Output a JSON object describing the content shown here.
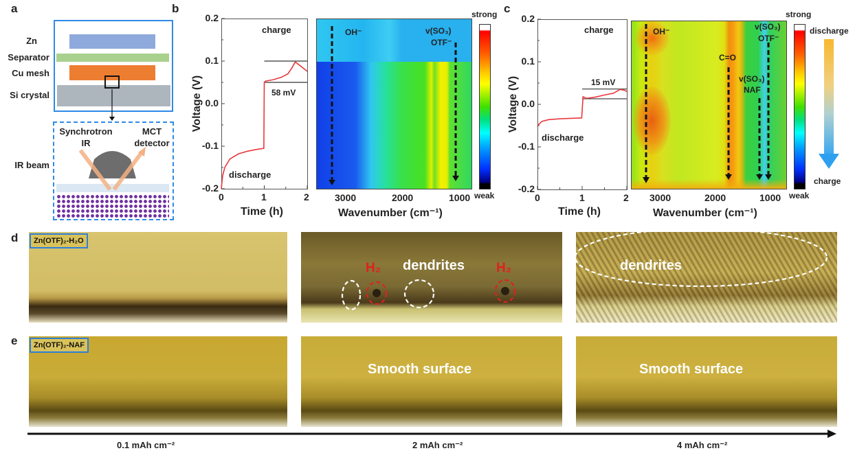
{
  "panels": {
    "a": {
      "label": "a",
      "layers": [
        "Zn",
        "Separator",
        "Cu mesh",
        "Si crystal"
      ],
      "synchrotron": [
        "Synchrotron",
        "IR"
      ],
      "detector": [
        "MCT",
        "detector"
      ],
      "ir_beam": "IR beam",
      "colors": {
        "zn": "#8ea9db",
        "separator": "#a9d18e",
        "cu": "#ed7d31",
        "si": "#adb5bd",
        "frame": "#2e8ae6",
        "beam": "#f4b183",
        "dots": "#7030a0"
      }
    },
    "b": {
      "label": "b",
      "charge": "charge",
      "discharge": "discharge",
      "gap": "58 mV",
      "heatmap_labels": {
        "oh": "OH⁻",
        "so3": "v(SO₃)",
        "otf": "OTF⁻"
      },
      "strong": "strong",
      "weak": "weak"
    },
    "c": {
      "label": "c",
      "charge": "charge",
      "discharge": "discharge",
      "gap": "15 mV",
      "heatmap_labels": {
        "oh": "OH⁻",
        "co": "C=O",
        "so3_naf": "v(SO₃)",
        "naf": "NAF",
        "so3_otf": "v(SO₃)",
        "otf": "OTF⁻"
      },
      "strong": "strong",
      "weak": "weak",
      "arrow_top": "discharge",
      "arrow_bottom": "charge"
    },
    "d": {
      "label": "d",
      "electrolyte": "Zn(OTF)₂-H₂O",
      "dendrites": "dendrites",
      "h2": "H₂"
    },
    "e": {
      "label": "e",
      "electrolyte": "Zn(OTF)₂-NAF",
      "smooth": "Smooth surface"
    },
    "capacity_labels": [
      "0.1 mAh cm⁻²",
      "2 mAh cm⁻²",
      "4 mAh cm⁻²"
    ]
  },
  "chart_data": [
    {
      "type": "line",
      "panel": "b",
      "xlabel": "Time (h)",
      "ylabel": "Voltage (V)",
      "xlim": [
        0,
        2
      ],
      "ylim": [
        -0.2,
        0.2
      ],
      "xticks": [
        "0",
        "1",
        "2"
      ],
      "yticks": [
        "0.2",
        "0.1",
        "0.0",
        "-0.1",
        "-0.2"
      ],
      "color": "#e8383d",
      "x": [
        0,
        0.03,
        0.08,
        0.2,
        0.4,
        0.6,
        0.8,
        0.99,
        1.0,
        1.03,
        1.2,
        1.4,
        1.55,
        1.65,
        1.72,
        1.85,
        2.0
      ],
      "y": [
        -0.2,
        -0.17,
        -0.15,
        -0.13,
        -0.118,
        -0.112,
        -0.108,
        -0.105,
        0.05,
        0.053,
        0.056,
        0.062,
        0.07,
        0.085,
        0.098,
        0.088,
        0.076
      ],
      "reference_lines": [
        0.1,
        0.05
      ]
    },
    {
      "type": "line",
      "panel": "c",
      "xlabel": "Time (h)",
      "ylabel": "Voltage (V)",
      "xlim": [
        0,
        2
      ],
      "ylim": [
        -0.2,
        0.2
      ],
      "xticks": [
        "0",
        "1",
        "2"
      ],
      "yticks": [
        "0.2",
        "0.1",
        "0.0",
        "-0.1",
        "-0.2"
      ],
      "color": "#e8383d",
      "x": [
        0,
        0.03,
        0.1,
        0.25,
        0.5,
        0.75,
        0.99,
        1.02,
        1.1,
        1.3,
        1.5,
        1.7,
        1.85,
        1.95,
        2.0
      ],
      "y": [
        -0.052,
        -0.047,
        -0.04,
        -0.036,
        -0.034,
        -0.033,
        -0.032,
        0.018,
        0.014,
        0.017,
        0.022,
        0.026,
        0.035,
        0.033,
        0.03
      ],
      "reference_lines": [
        0.036,
        0.013
      ]
    },
    {
      "type": "heatmap",
      "panel": "b",
      "xlabel": "Wavenumber (cm⁻¹)",
      "xticks": [
        "3000",
        "2000",
        "1000"
      ],
      "colorbar": [
        "strong",
        "weak"
      ]
    },
    {
      "type": "heatmap",
      "panel": "c",
      "xlabel": "Wavenumber (cm⁻¹)",
      "xticks": [
        "3000",
        "2000",
        "1000"
      ],
      "colorbar": [
        "strong",
        "weak"
      ]
    }
  ]
}
